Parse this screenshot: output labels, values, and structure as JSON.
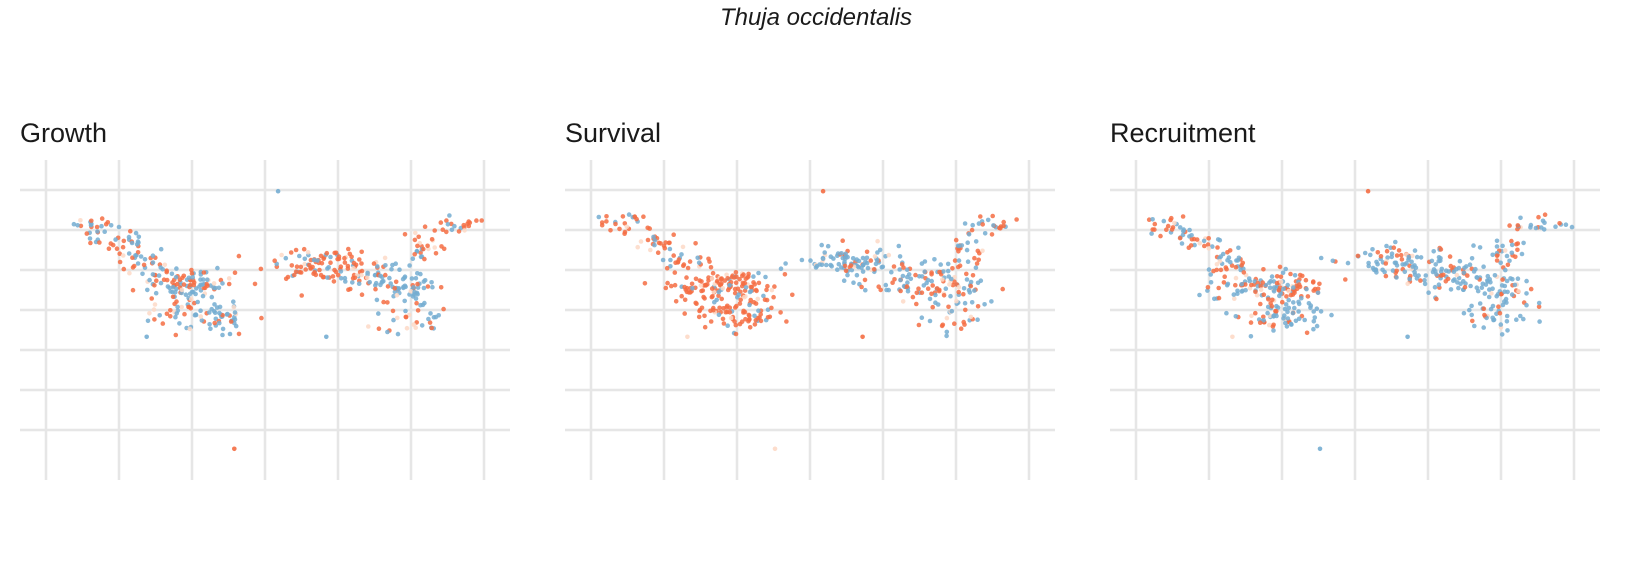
{
  "figure": {
    "title": "Thuja occidentalis"
  },
  "colors": {
    "high": "#f46d43",
    "low": "#74add1",
    "light": "#fdd9c7",
    "grid": "#e6e6e6"
  },
  "chart_data": [
    {
      "type": "scatter",
      "title": "Growth",
      "xlim": [
        0,
        100
      ],
      "ylim": [
        0,
        100
      ],
      "grid": true,
      "legend": "none",
      "x_gridlines": 7,
      "y_gridlines": 7,
      "clusters": [
        {
          "cx": 11,
          "cy": 83,
          "rx": 4,
          "ry": 3,
          "n": 24,
          "mix": 0.45
        },
        {
          "cx": 17,
          "cy": 78,
          "rx": 4,
          "ry": 3,
          "n": 22,
          "mix": 0.45
        },
        {
          "cx": 23,
          "cy": 70,
          "rx": 5,
          "ry": 4,
          "n": 30,
          "mix": 0.5
        },
        {
          "cx": 29,
          "cy": 63,
          "rx": 6,
          "ry": 4,
          "n": 50,
          "mix": 0.55
        },
        {
          "cx": 36,
          "cy": 62,
          "rx": 5,
          "ry": 4,
          "n": 55,
          "mix": 0.4
        },
        {
          "cx": 31,
          "cy": 52,
          "rx": 5,
          "ry": 4,
          "n": 35,
          "mix": 0.5
        },
        {
          "cx": 40,
          "cy": 52,
          "rx": 4,
          "ry": 5,
          "n": 40,
          "mix": 0.3
        },
        {
          "cx": 62,
          "cy": 70,
          "rx": 9,
          "ry": 4,
          "n": 95,
          "mix": 0.72
        },
        {
          "cx": 73,
          "cy": 65,
          "rx": 6,
          "ry": 5,
          "n": 50,
          "mix": 0.5
        },
        {
          "cx": 83,
          "cy": 62,
          "rx": 6,
          "ry": 5,
          "n": 55,
          "mix": 0.35
        },
        {
          "cx": 84,
          "cy": 51,
          "rx": 6,
          "ry": 4,
          "n": 30,
          "mix": 0.3
        },
        {
          "cx": 86,
          "cy": 75,
          "rx": 3,
          "ry": 5,
          "n": 25,
          "mix": 0.55
        },
        {
          "cx": 93,
          "cy": 84,
          "rx": 5,
          "ry": 2,
          "n": 22,
          "mix": 0.6
        }
      ],
      "outliers": [
        {
          "x": 23,
          "y": 44,
          "c": "low"
        },
        {
          "x": 42,
          "y": 45,
          "c": "low"
        },
        {
          "x": 64,
          "y": 44,
          "c": "low"
        },
        {
          "x": 53,
          "y": 96,
          "c": "low"
        },
        {
          "x": 43,
          "y": 4,
          "c": "high"
        }
      ]
    },
    {
      "type": "scatter",
      "title": "Survival",
      "xlim": [
        0,
        100
      ],
      "ylim": [
        0,
        100
      ],
      "grid": true,
      "legend": "none",
      "x_gridlines": 7,
      "y_gridlines": 7,
      "clusters": [
        {
          "cx": 8,
          "cy": 84,
          "rx": 4,
          "ry": 3,
          "n": 24,
          "mix": 0.75
        },
        {
          "cx": 15,
          "cy": 78,
          "rx": 4,
          "ry": 3,
          "n": 22,
          "mix": 0.75
        },
        {
          "cx": 21,
          "cy": 71,
          "rx": 5,
          "ry": 4,
          "n": 28,
          "mix": 0.8
        },
        {
          "cx": 27,
          "cy": 62,
          "rx": 7,
          "ry": 4,
          "n": 65,
          "mix": 0.85
        },
        {
          "cx": 35,
          "cy": 62,
          "rx": 6,
          "ry": 4,
          "n": 60,
          "mix": 0.85
        },
        {
          "cx": 29,
          "cy": 52,
          "rx": 5,
          "ry": 4,
          "n": 35,
          "mix": 0.8
        },
        {
          "cx": 37,
          "cy": 52,
          "rx": 4,
          "ry": 5,
          "n": 40,
          "mix": 0.7
        },
        {
          "cx": 60,
          "cy": 70,
          "rx": 9,
          "ry": 4,
          "n": 95,
          "mix": 0.3
        },
        {
          "cx": 72,
          "cy": 65,
          "rx": 6,
          "ry": 5,
          "n": 55,
          "mix": 0.4
        },
        {
          "cx": 82,
          "cy": 62,
          "rx": 6,
          "ry": 5,
          "n": 55,
          "mix": 0.45
        },
        {
          "cx": 83,
          "cy": 51,
          "rx": 6,
          "ry": 4,
          "n": 30,
          "mix": 0.5
        },
        {
          "cx": 85,
          "cy": 75,
          "rx": 3,
          "ry": 5,
          "n": 25,
          "mix": 0.5
        },
        {
          "cx": 92,
          "cy": 84,
          "rx": 5,
          "ry": 2,
          "n": 22,
          "mix": 0.55
        }
      ],
      "outliers": [
        {
          "x": 22,
          "y": 44,
          "c": "light"
        },
        {
          "x": 62,
          "y": 44,
          "c": "high"
        },
        {
          "x": 53,
          "y": 96,
          "c": "high"
        },
        {
          "x": 42,
          "y": 4,
          "c": "light"
        }
      ]
    },
    {
      "type": "scatter",
      "title": "Recruitment",
      "xlim": [
        0,
        100
      ],
      "ylim": [
        0,
        100
      ],
      "grid": true,
      "legend": "none",
      "x_gridlines": 7,
      "y_gridlines": 7,
      "clusters": [
        {
          "cx": 8,
          "cy": 83,
          "rx": 4,
          "ry": 3,
          "n": 24,
          "mix": 0.4
        },
        {
          "cx": 15,
          "cy": 78,
          "rx": 4,
          "ry": 3,
          "n": 22,
          "mix": 0.3
        },
        {
          "cx": 21,
          "cy": 71,
          "rx": 5,
          "ry": 4,
          "n": 30,
          "mix": 0.3
        },
        {
          "cx": 27,
          "cy": 62,
          "rx": 7,
          "ry": 4,
          "n": 65,
          "mix": 0.65
        },
        {
          "cx": 35,
          "cy": 62,
          "rx": 6,
          "ry": 4,
          "n": 60,
          "mix": 0.6
        },
        {
          "cx": 29,
          "cy": 52,
          "rx": 5,
          "ry": 4,
          "n": 35,
          "mix": 0.35
        },
        {
          "cx": 37,
          "cy": 52,
          "rx": 4,
          "ry": 5,
          "n": 40,
          "mix": 0.25
        },
        {
          "cx": 61,
          "cy": 70,
          "rx": 9,
          "ry": 4,
          "n": 95,
          "mix": 0.3
        },
        {
          "cx": 72,
          "cy": 65,
          "rx": 6,
          "ry": 5,
          "n": 55,
          "mix": 0.35
        },
        {
          "cx": 82,
          "cy": 62,
          "rx": 6,
          "ry": 5,
          "n": 60,
          "mix": 0.25
        },
        {
          "cx": 83,
          "cy": 51,
          "rx": 6,
          "ry": 4,
          "n": 35,
          "mix": 0.2
        },
        {
          "cx": 85,
          "cy": 75,
          "rx": 3,
          "ry": 5,
          "n": 25,
          "mix": 0.4
        },
        {
          "cx": 92,
          "cy": 84,
          "rx": 5,
          "ry": 2,
          "n": 22,
          "mix": 0.4
        }
      ],
      "outliers": [
        {
          "x": 22,
          "y": 44,
          "c": "light"
        },
        {
          "x": 62,
          "y": 44,
          "c": "low"
        },
        {
          "x": 53,
          "y": 96,
          "c": "high"
        },
        {
          "x": 42,
          "y": 4,
          "c": "low"
        }
      ]
    }
  ]
}
